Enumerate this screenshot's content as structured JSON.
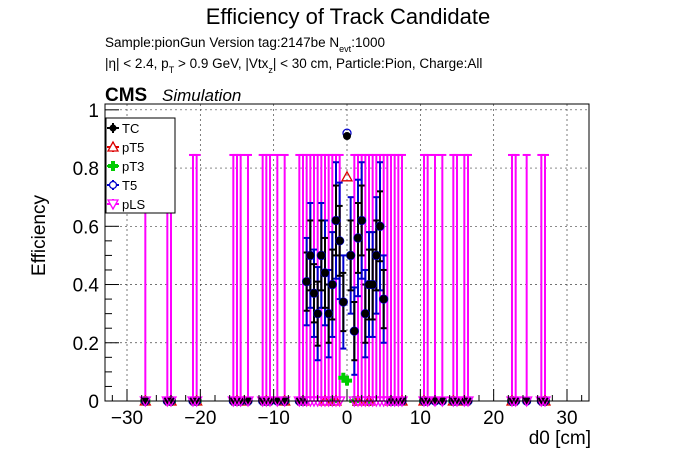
{
  "header": {
    "title": "Efficiency of Track Candidate",
    "line1": "Sample:pionGun   Version tag:2147be  N",
    "line1_sub": "evt",
    "line1_tail": ":1000",
    "line2": "|η| < 2.4, p",
    "line2_sub1": "T",
    "line2_mid": " > 0.9 GeV, |Vtx",
    "line2_sub2": "z",
    "line2_tail": "| < 30 cm, Particle:Pion, Charge:All"
  },
  "labels": {
    "cms": "CMS",
    "simulation": "Simulation"
  },
  "colors": {
    "TC": "#000000",
    "pT5": "#dd0000",
    "pT3": "#00cc00",
    "T5": "#0000cc",
    "pLS": "#ff00ff"
  },
  "chart_data": {
    "type": "scatter",
    "title": "Efficiency of Track Candidate",
    "xlabel": "d0 [cm]",
    "ylabel": "Efficiency",
    "xlim": [
      -33,
      33
    ],
    "ylim": [
      0,
      1.02
    ],
    "xticks": [
      -30,
      -20,
      -10,
      0,
      10,
      20,
      30
    ],
    "xtick_labels": [
      "−30",
      "−20",
      "−10",
      "0",
      "10",
      "20",
      "30"
    ],
    "yticks": [
      0,
      0.2,
      0.4,
      0.6,
      0.8,
      1
    ],
    "ytick_labels": [
      "0",
      "0.2",
      "0.4",
      "0.6",
      "0.8",
      "1"
    ],
    "grid": true,
    "legend_position": "top-left",
    "series": [
      {
        "name": "TC",
        "marker": "circle-filled",
        "points": [
          [
            -27.5,
            0
          ],
          [
            -24.5,
            0
          ],
          [
            -24,
            0
          ],
          [
            -21,
            0
          ],
          [
            -20.5,
            0
          ],
          [
            -15.5,
            0
          ],
          [
            -15,
            0
          ],
          [
            -14.5,
            0
          ],
          [
            -13.5,
            0
          ],
          [
            -11.5,
            0
          ],
          [
            -11,
            0
          ],
          [
            -10.5,
            0
          ],
          [
            -9.5,
            0
          ],
          [
            -8.5,
            0
          ],
          [
            -6.5,
            0
          ],
          [
            -6,
            0
          ],
          [
            -5.5,
            0.41
          ],
          [
            -5,
            0.5
          ],
          [
            -4.5,
            0.37
          ],
          [
            -4,
            0.3
          ],
          [
            -3.5,
            0.5
          ],
          [
            -3,
            0.44
          ],
          [
            -2.5,
            0.3
          ],
          [
            -2,
            0.4
          ],
          [
            -1.5,
            0.62
          ],
          [
            -1,
            0.55
          ],
          [
            -0.5,
            0.34
          ],
          [
            0,
            0.91
          ],
          [
            0.5,
            0.5
          ],
          [
            1,
            0.24
          ],
          [
            1.5,
            0.56
          ],
          [
            2,
            0.62
          ],
          [
            2.5,
            0.3
          ],
          [
            3,
            0.4
          ],
          [
            3.5,
            0.4
          ],
          [
            4,
            0.5
          ],
          [
            4.5,
            0.6
          ],
          [
            5,
            0.35
          ],
          [
            6,
            0
          ],
          [
            6.5,
            0
          ],
          [
            7,
            0
          ],
          [
            7.5,
            0
          ],
          [
            10.5,
            0
          ],
          [
            11,
            0
          ],
          [
            12,
            0
          ],
          [
            13,
            0
          ],
          [
            14.5,
            0
          ],
          [
            15,
            0
          ],
          [
            16,
            0
          ],
          [
            16.5,
            0
          ],
          [
            22.5,
            0
          ],
          [
            23,
            0
          ],
          [
            24.5,
            0
          ],
          [
            26.5,
            0
          ],
          [
            27,
            0
          ]
        ],
        "err": [
          [
            -5.5,
            0.1
          ],
          [
            -5,
            0.12
          ],
          [
            -4.5,
            0.1
          ],
          [
            -4,
            0.11
          ],
          [
            -3.5,
            0.12
          ],
          [
            -3,
            0.12
          ],
          [
            -2.5,
            0.1
          ],
          [
            -2,
            0.12
          ],
          [
            -1.5,
            0.12
          ],
          [
            -1,
            0.12
          ],
          [
            -0.5,
            0.1
          ],
          [
            0.5,
            0.12
          ],
          [
            1,
            0.1
          ],
          [
            1.5,
            0.12
          ],
          [
            2,
            0.12
          ],
          [
            2.5,
            0.1
          ],
          [
            3,
            0.12
          ],
          [
            3.5,
            0.12
          ],
          [
            4,
            0.12
          ],
          [
            4.5,
            0.12
          ],
          [
            5,
            0.1
          ]
        ]
      },
      {
        "name": "pT5",
        "marker": "triangle-open",
        "points": [
          [
            -27.5,
            0
          ],
          [
            -24,
            0
          ],
          [
            -20.5,
            0
          ],
          [
            -15,
            0
          ],
          [
            -14,
            0
          ],
          [
            -11,
            0
          ],
          [
            -8.5,
            0
          ],
          [
            -6,
            0
          ],
          [
            -3,
            0
          ],
          [
            -1.5,
            0
          ],
          [
            0,
            0.77
          ],
          [
            1.5,
            0
          ],
          [
            3,
            0
          ],
          [
            6,
            0
          ],
          [
            7.5,
            0
          ],
          [
            10.5,
            0
          ],
          [
            14.5,
            0
          ],
          [
            16,
            0
          ],
          [
            22.5,
            0
          ],
          [
            27,
            0
          ]
        ]
      },
      {
        "name": "pT3",
        "marker": "cross-filled",
        "points": [
          [
            -27.5,
            0
          ],
          [
            -24,
            0
          ],
          [
            -20.5,
            0
          ],
          [
            -15,
            0
          ],
          [
            -11,
            0
          ],
          [
            -8.5,
            0
          ],
          [
            -6,
            0
          ],
          [
            -2,
            0
          ],
          [
            -0.5,
            0.08
          ],
          [
            0,
            0.07
          ],
          [
            1,
            0
          ],
          [
            3,
            0
          ],
          [
            6,
            0
          ],
          [
            10.5,
            0
          ],
          [
            14.5,
            0
          ],
          [
            22.5,
            0
          ],
          [
            27,
            0
          ]
        ]
      },
      {
        "name": "T5",
        "marker": "circle-open",
        "points": [
          [
            -27.5,
            0
          ],
          [
            -24.5,
            0
          ],
          [
            -24,
            0
          ],
          [
            -21,
            0
          ],
          [
            -20.5,
            0
          ],
          [
            -15.5,
            0
          ],
          [
            -15,
            0
          ],
          [
            -14.5,
            0
          ],
          [
            -13.5,
            0
          ],
          [
            -11.5,
            0
          ],
          [
            -11,
            0
          ],
          [
            -10.5,
            0
          ],
          [
            -9.5,
            0
          ],
          [
            -8.5,
            0
          ],
          [
            -6.5,
            0
          ],
          [
            -6,
            0
          ],
          [
            -5.5,
            0.41
          ],
          [
            -5,
            0.5
          ],
          [
            -4.5,
            0.37
          ],
          [
            -4,
            0.3
          ],
          [
            -3.5,
            0.5
          ],
          [
            -3,
            0.44
          ],
          [
            -2.5,
            0.3
          ],
          [
            -2,
            0.4
          ],
          [
            -1.5,
            0.62
          ],
          [
            -1,
            0.55
          ],
          [
            -0.5,
            0.34
          ],
          [
            0,
            0.92
          ],
          [
            0.5,
            0.5
          ],
          [
            1,
            0.24
          ],
          [
            1.5,
            0.56
          ],
          [
            2,
            0.62
          ],
          [
            2.5,
            0.3
          ],
          [
            3,
            0.4
          ],
          [
            3.5,
            0.4
          ],
          [
            4,
            0.5
          ],
          [
            4.5,
            0.6
          ],
          [
            5,
            0.35
          ],
          [
            6,
            0
          ],
          [
            6.5,
            0
          ],
          [
            7,
            0
          ],
          [
            7.5,
            0
          ],
          [
            10.5,
            0
          ],
          [
            11,
            0
          ],
          [
            12,
            0
          ],
          [
            13,
            0
          ],
          [
            14.5,
            0
          ],
          [
            15,
            0
          ],
          [
            16,
            0
          ],
          [
            16.5,
            0
          ],
          [
            22.5,
            0
          ],
          [
            23,
            0
          ],
          [
            24.5,
            0
          ],
          [
            26.5,
            0
          ],
          [
            27,
            0
          ]
        ],
        "err": [
          [
            -5.5,
            0.15
          ],
          [
            -5,
            0.18
          ],
          [
            -4.5,
            0.15
          ],
          [
            -4,
            0.16
          ],
          [
            -3.5,
            0.18
          ],
          [
            -3,
            0.18
          ],
          [
            -2.5,
            0.15
          ],
          [
            -2,
            0.18
          ],
          [
            -1.5,
            0.2
          ],
          [
            -1,
            0.2
          ],
          [
            -0.5,
            0.16
          ],
          [
            0.5,
            0.2
          ],
          [
            1,
            0.15
          ],
          [
            1.5,
            0.2
          ],
          [
            2,
            0.2
          ],
          [
            2.5,
            0.15
          ],
          [
            3,
            0.18
          ],
          [
            3.5,
            0.18
          ],
          [
            4,
            0.2
          ],
          [
            4.5,
            0.22
          ],
          [
            5,
            0.15
          ]
        ]
      },
      {
        "name": "pLS",
        "marker": "triangle-down-open",
        "bars": [
          -27.5,
          -24.5,
          -24,
          -21,
          -20.5,
          -15.5,
          -15,
          -14.5,
          -13.5,
          -11.5,
          -11,
          -10.5,
          -9.5,
          -8.5,
          -6.5,
          -6,
          -5.5,
          -5,
          -4.5,
          -4,
          -3.5,
          -3,
          -2.5,
          -2,
          -1.5,
          -1,
          1,
          1.5,
          2,
          2.5,
          3,
          3.5,
          4,
          4.5,
          5,
          5.5,
          6,
          6.5,
          7,
          7.5,
          10.5,
          11,
          12,
          13,
          14.5,
          15,
          16,
          16.5,
          22.5,
          23,
          24.5,
          26.5,
          27
        ],
        "bar_top": 0.845,
        "value": 0
      }
    ]
  }
}
